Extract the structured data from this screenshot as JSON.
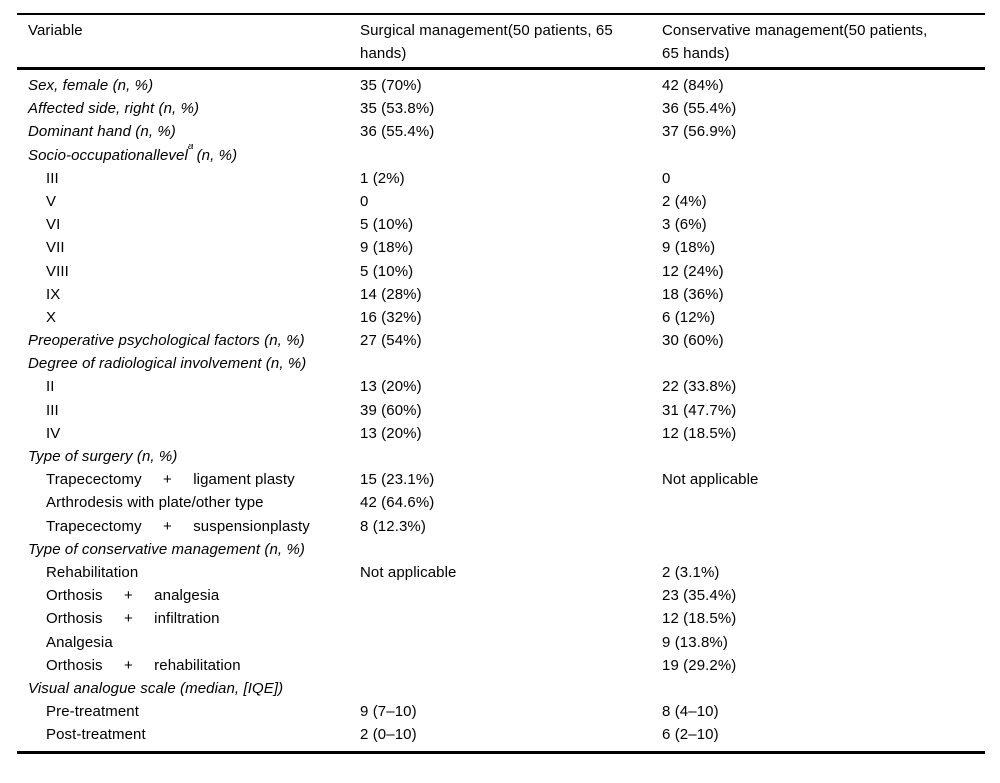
{
  "table": {
    "columns": [
      "Variable",
      "Surgical management(50 patients, 65 hands)",
      "Conservative management(50 patients, 65 hands)"
    ],
    "rows": [
      {
        "label": "Sex, female (n, %)",
        "italic": true,
        "surgical": "35 (70%)",
        "conservative": "42 (84%)"
      },
      {
        "label": "Affected side, right (n, %)",
        "italic": true,
        "surgical": "35 (53.8%)",
        "conservative": "36 (55.4%)"
      },
      {
        "label": "Dominant hand (n, %)",
        "italic": true,
        "surgical": "36 (55.4%)",
        "conservative": "37 (56.9%)"
      },
      {
        "label": "Socio-occupationallevel",
        "sup": "a",
        "suffix": "(n, %)",
        "italic": true,
        "surgical": "",
        "conservative": ""
      },
      {
        "label": "III",
        "indent": true,
        "surgical": "1 (2%)",
        "conservative": "0"
      },
      {
        "label": "V",
        "indent": true,
        "surgical": "0",
        "conservative": "2 (4%)"
      },
      {
        "label": "VI",
        "indent": true,
        "surgical": "5 (10%)",
        "conservative": "3 (6%)"
      },
      {
        "label": "VII",
        "indent": true,
        "surgical": "9 (18%)",
        "conservative": "9 (18%)"
      },
      {
        "label": "VIII",
        "indent": true,
        "surgical": "5 (10%)",
        "conservative": "12 (24%)"
      },
      {
        "label": "IX",
        "indent": true,
        "surgical": "14 (28%)",
        "conservative": "18 (36%)"
      },
      {
        "label": "X",
        "indent": true,
        "surgical": "16 (32%)",
        "conservative": "6 (12%)"
      },
      {
        "label": "Preoperative psychological factors (n, %)",
        "italic": true,
        "surgical": "27 (54%)",
        "conservative": "30 (60%)"
      },
      {
        "label": "Degree of radiological involvement (n, %)",
        "italic": true,
        "surgical": "",
        "conservative": ""
      },
      {
        "label": "II",
        "indent": true,
        "surgical": "13 (20%)",
        "conservative": "22 (33.8%)"
      },
      {
        "label": "III",
        "indent": true,
        "surgical": "39 (60%)",
        "conservative": "31 (47.7%)"
      },
      {
        "label": "IV",
        "indent": true,
        "surgical": "13 (20%)",
        "conservative": "12 (18.5%)"
      },
      {
        "label": "Type of surgery (n, %)",
        "italic": true,
        "surgical": "",
        "conservative": ""
      },
      {
        "label": "Trapecectomy     +     ligament plasty",
        "indent": true,
        "surgical": "15 (23.1%)",
        "conservative": "Not applicable"
      },
      {
        "label": "Arthrodesis with plate/other type",
        "indent": true,
        "surgical": "42 (64.6%)",
        "conservative": ""
      },
      {
        "label": "Trapecectomy     +     suspensionplasty",
        "indent": true,
        "surgical": "8 (12.3%)",
        "conservative": ""
      },
      {
        "label": "Type of conservative management (n, %)",
        "italic": true,
        "surgical": "",
        "conservative": ""
      },
      {
        "label": "Rehabilitation",
        "indent": true,
        "surgical": "Not applicable",
        "conservative": "2 (3.1%)"
      },
      {
        "label": "Orthosis     +     analgesia",
        "indent": true,
        "surgical": "",
        "conservative": "23 (35.4%)"
      },
      {
        "label": "Orthosis     +     infiltration",
        "indent": true,
        "surgical": "",
        "conservative": "12 (18.5%)"
      },
      {
        "label": "Analgesia",
        "indent": true,
        "surgical": "",
        "conservative": "9 (13.8%)"
      },
      {
        "label": "Orthosis     +     rehabilitation",
        "indent": true,
        "surgical": "",
        "conservative": "19 (29.2%)"
      },
      {
        "label": "Visual analogue scale (median, [IQE])",
        "italic": true,
        "surgical": "",
        "conservative": ""
      },
      {
        "label": "Pre-treatment",
        "indent": true,
        "surgical": "9 (7–10)",
        "conservative": "8 (4–10)"
      },
      {
        "label": "Post-treatment",
        "indent": true,
        "surgical": "2 (0–10)",
        "conservative": "6 (2–10)"
      }
    ]
  }
}
